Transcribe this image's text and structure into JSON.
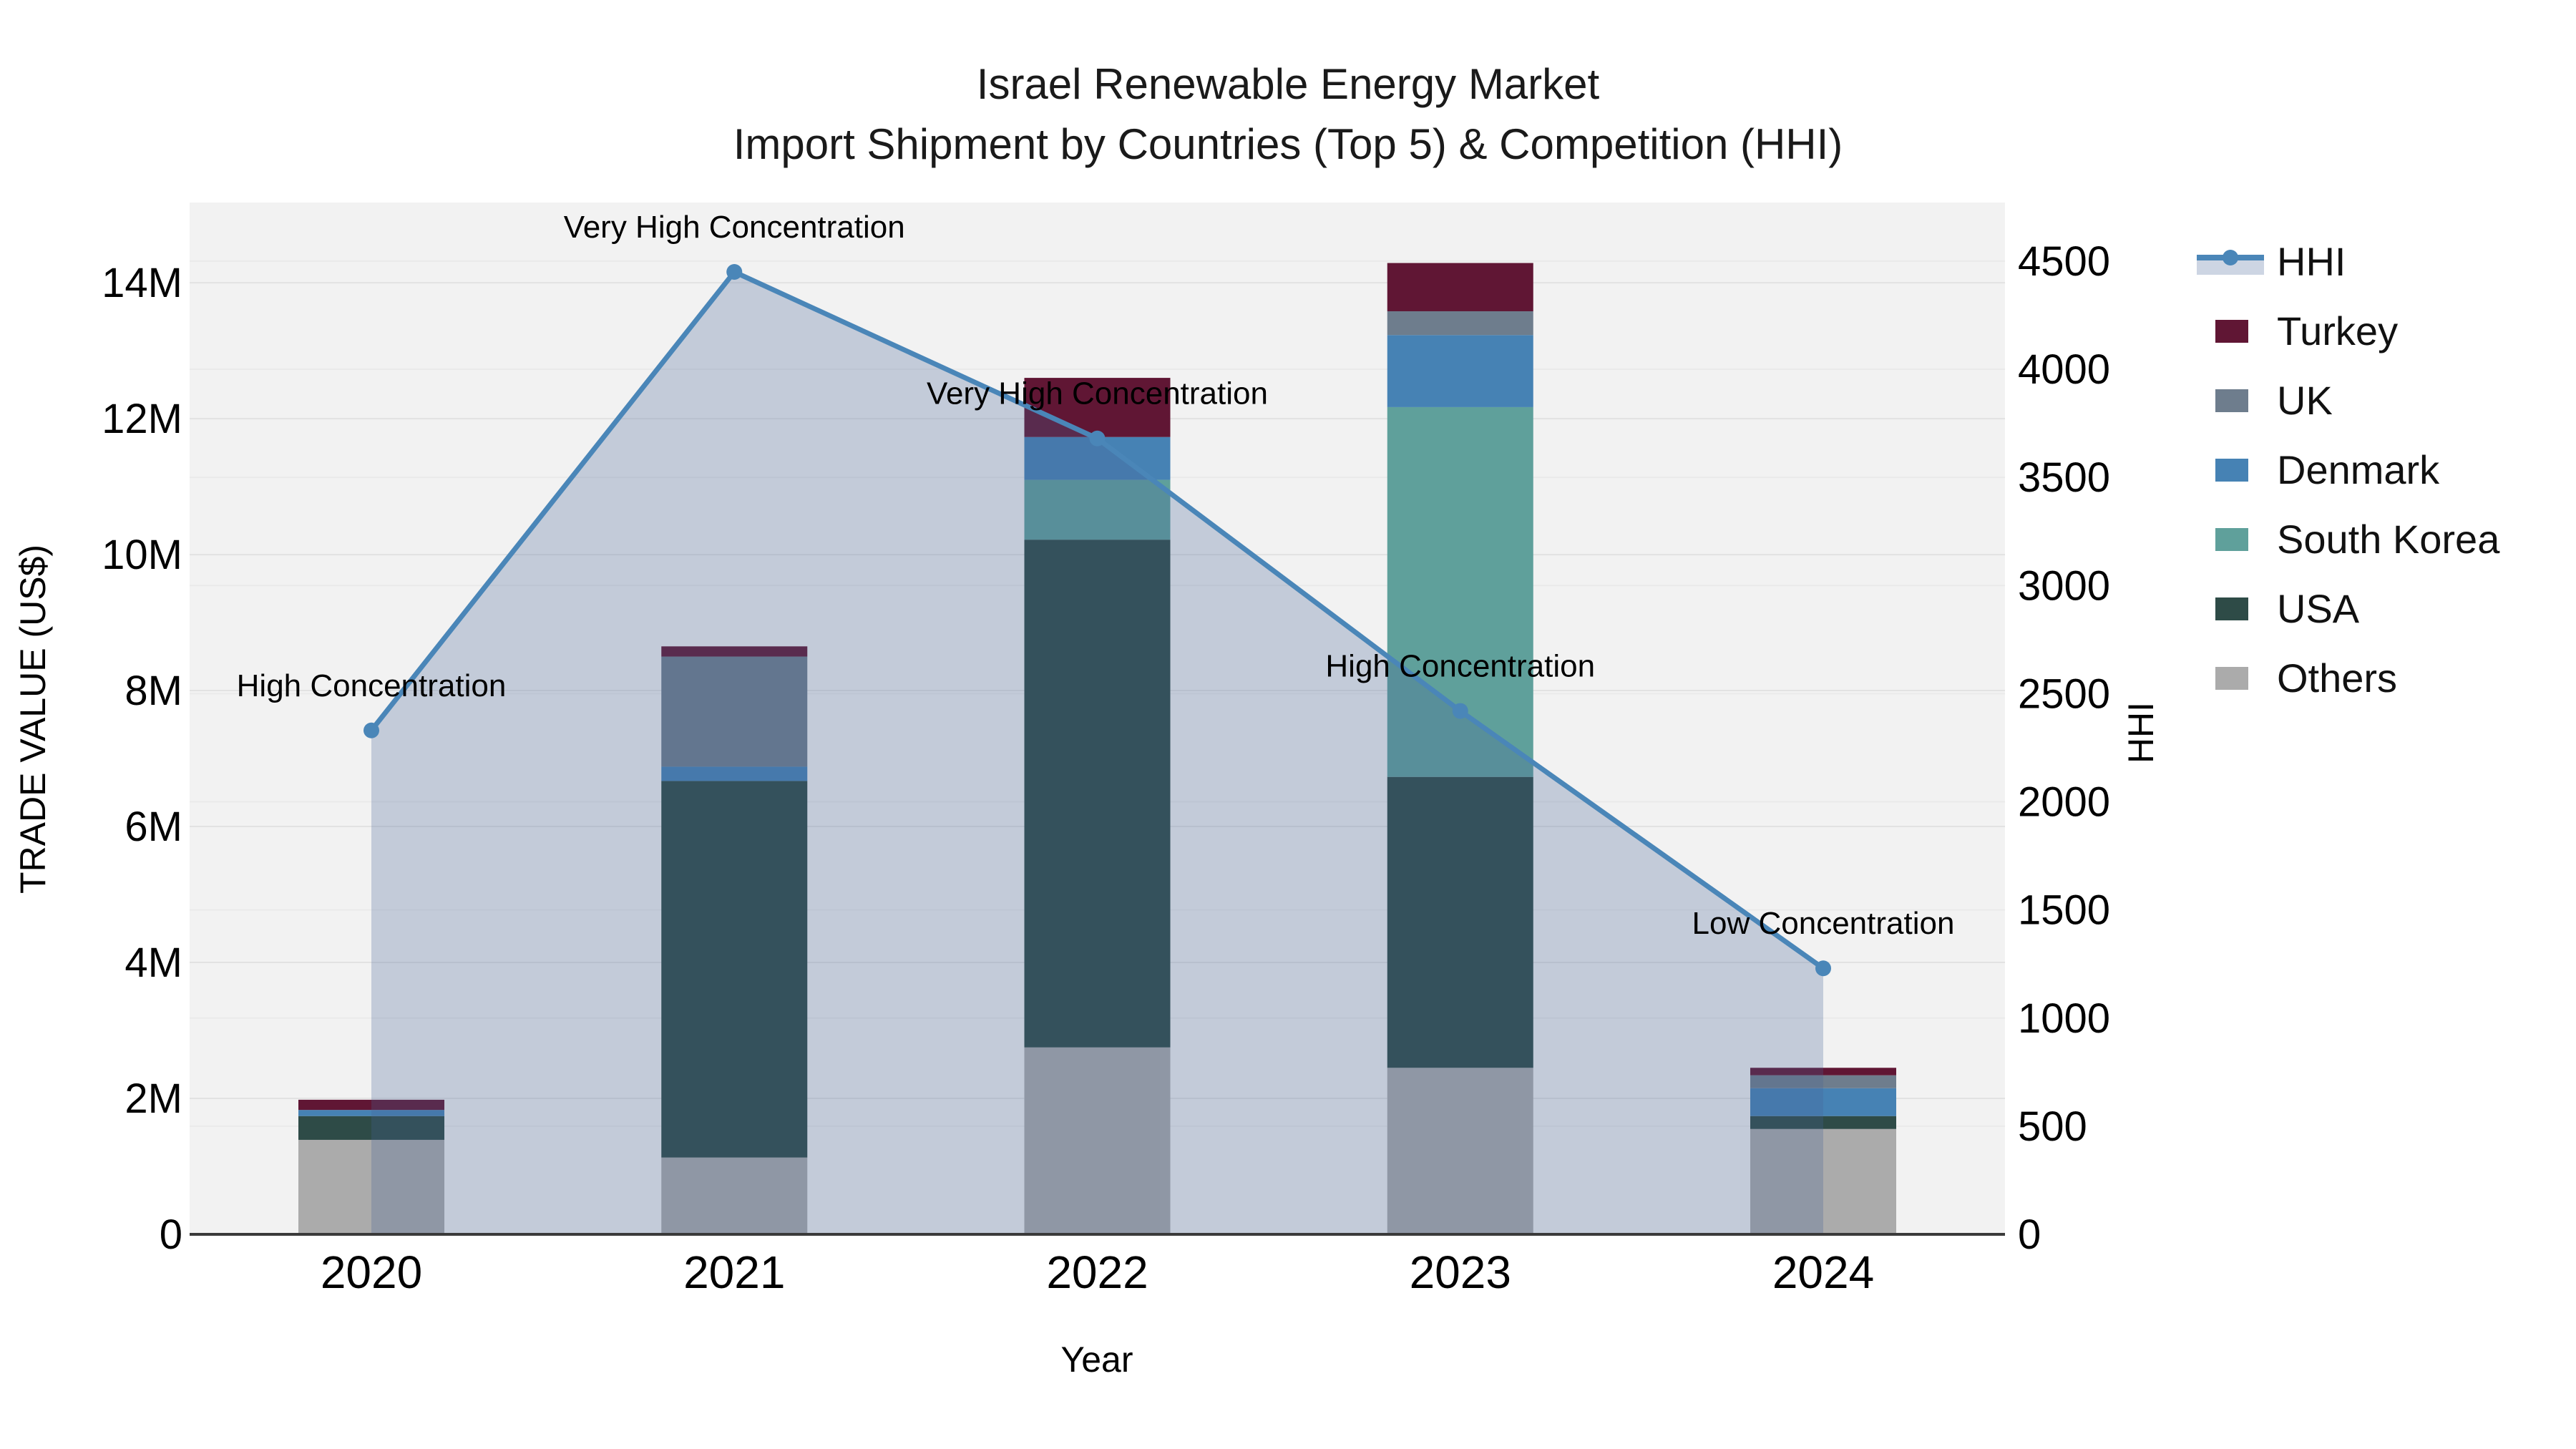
{
  "title": {
    "line1": "Israel Renewable Energy Market",
    "line2": "Import Shipment by Countries (Top 5) & Competition (HHI)"
  },
  "axes": {
    "y_left": {
      "label": "TRADE VALUE (US$)",
      "tick_labels": [
        "0",
        "2M",
        "4M",
        "6M",
        "8M",
        "10M",
        "12M",
        "14M"
      ],
      "tick_values_musd": [
        0,
        2,
        4,
        6,
        8,
        10,
        12,
        14
      ]
    },
    "y_right": {
      "label": "HHI",
      "tick_labels": [
        "0",
        "500",
        "1000",
        "1500",
        "2000",
        "2500",
        "3000",
        "3500",
        "4000",
        "4500"
      ],
      "tick_values": [
        0,
        500,
        1000,
        1500,
        2000,
        2500,
        3000,
        3500,
        4000,
        4500
      ]
    },
    "x": {
      "label": "Year",
      "tick_labels": [
        "2020",
        "2021",
        "2022",
        "2023",
        "2024"
      ]
    }
  },
  "chart_data": {
    "type": "bar+line",
    "title": "Israel Renewable Energy Market — Import Shipment by Countries (Top 5) & Competition (HHI)",
    "categories": [
      "2020",
      "2021",
      "2022",
      "2023",
      "2024"
    ],
    "bar_unit": "million US$ (stacked trade value)",
    "stack_order_bottom_to_top": [
      "Others",
      "USA",
      "South Korea",
      "Denmark",
      "UK",
      "Turkey"
    ],
    "series": [
      {
        "name": "Turkey",
        "color": "#601634",
        "values": [
          0.15,
          0.15,
          0.87,
          0.71,
          0.11
        ]
      },
      {
        "name": "UK",
        "color": "#6e7d8d",
        "values": [
          0,
          1.62,
          0,
          0.35,
          0.19
        ]
      },
      {
        "name": "Denmark",
        "color": "#4682b4",
        "values": [
          0.09,
          0.21,
          0.63,
          1.06,
          0.41
        ]
      },
      {
        "name": "South Korea",
        "color": "#5fa09b",
        "values": [
          0,
          0,
          0.88,
          5.44,
          0
        ]
      },
      {
        "name": "USA",
        "color": "#2e4b47",
        "values": [
          0.35,
          5.54,
          7.47,
          4.28,
          0.19
        ]
      },
      {
        "name": "Others",
        "color": "#ababab",
        "values": [
          1.39,
          1.13,
          2.75,
          2.45,
          1.55
        ]
      }
    ],
    "bar_totals_musd": [
      1.98,
      8.65,
      12.6,
      14.29,
      2.45
    ],
    "line_series": {
      "name": "HHI",
      "color": "#4a86b8",
      "area_fill": "rgba(70,100,150,0.27)",
      "values": [
        2330,
        4450,
        3680,
        2420,
        1230
      ]
    },
    "annotations": [
      {
        "category": "2020",
        "text": "High Concentration"
      },
      {
        "category": "2021",
        "text": "Very High Concentration"
      },
      {
        "category": "2022",
        "text": "Very High Concentration"
      },
      {
        "category": "2023",
        "text": "High Concentration"
      },
      {
        "category": "2024",
        "text": "Low Concentration"
      }
    ],
    "y_left_range_musd": [
      0,
      15.18
    ],
    "y_right_range": [
      0,
      4771
    ],
    "grid": true,
    "legend_position": "right-outside",
    "plot_bg": "#f2f2f2"
  },
  "legend": {
    "items": [
      {
        "label": "HHI",
        "kind": "line",
        "color": "#4a86b8"
      },
      {
        "label": "Turkey",
        "kind": "patch",
        "color": "#601634"
      },
      {
        "label": "UK",
        "kind": "patch",
        "color": "#6e7d8d"
      },
      {
        "label": "Denmark",
        "kind": "patch",
        "color": "#4682b4"
      },
      {
        "label": "South Korea",
        "kind": "patch",
        "color": "#5fa09b"
      },
      {
        "label": "USA",
        "kind": "patch",
        "color": "#2e4b47"
      },
      {
        "label": "Others",
        "kind": "patch",
        "color": "#ababab"
      }
    ]
  },
  "colors": {
    "plot_bg": "#f2f2f2",
    "grid_major": "#e2e2e2",
    "grid_minor": "#eaeaea",
    "axis_line": "#3a3a3a",
    "text": "#000000",
    "hhi_line": "#4a86b8",
    "hhi_area": "rgba(70,100,150,0.27)"
  }
}
